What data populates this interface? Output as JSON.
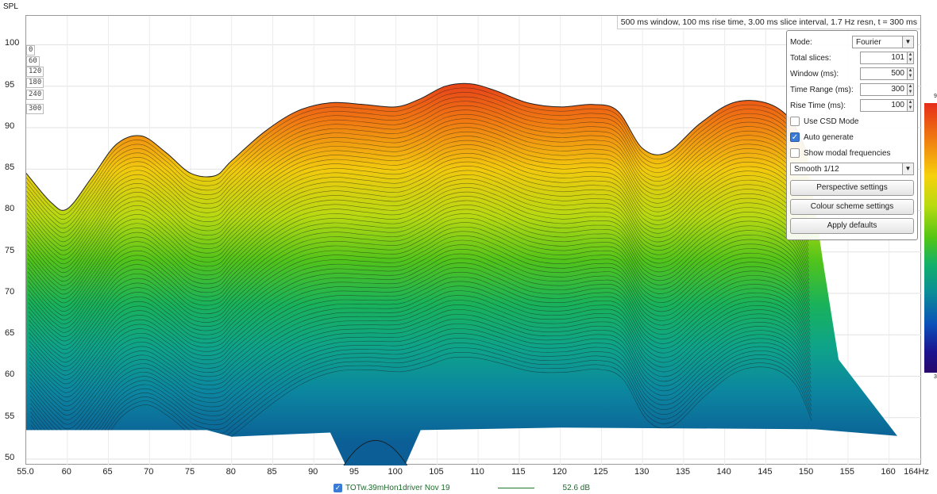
{
  "chart_data": {
    "type": "area",
    "title": "",
    "ylabel": "SPL",
    "xunit": "Hz",
    "xlim": [
      55,
      164
    ],
    "ylim": [
      48,
      101
    ],
    "yticks": [
      "100",
      "95",
      "90",
      "85",
      "80",
      "75",
      "70",
      "65",
      "60",
      "55",
      "50"
    ],
    "xticks": [
      "55.0",
      "60",
      "65",
      "70",
      "75",
      "80",
      "85",
      "90",
      "95",
      "100",
      "105",
      "110",
      "115",
      "120",
      "125",
      "130",
      "135",
      "140",
      "145",
      "150",
      "155",
      "160",
      "164Hz"
    ],
    "time_labels": [
      "0",
      "60",
      "120",
      "180",
      "240",
      "300"
    ],
    "info": "500 ms window, 100 ms rise time, 3.00 ms slice interval, 1.7 Hz resn, t = 300 ms",
    "front_slice": {
      "freq": [
        55,
        58,
        60,
        63,
        66,
        69,
        72,
        75,
        78,
        80,
        84,
        88,
        92,
        96,
        100,
        103,
        106,
        109,
        112,
        116,
        120,
        124,
        127,
        130,
        133,
        137,
        141,
        145,
        148,
        150
      ],
      "spl": [
        84.5,
        81,
        80.2,
        84,
        88,
        89,
        87,
        84.5,
        84.2,
        86,
        89.5,
        92,
        93,
        92.8,
        92.5,
        93.5,
        95,
        95.3,
        94.5,
        93,
        92.5,
        92.8,
        92,
        87.5,
        87,
        90.5,
        93,
        93,
        91,
        87
      ]
    },
    "colour_scale": {
      "top": "9",
      "bottom": "3"
    }
  },
  "panel": {
    "mode_label": "Mode:",
    "mode_value": "Fourier",
    "total_slices_label": "Total slices:",
    "total_slices_value": "101",
    "window_label": "Window (ms):",
    "window_value": "500",
    "time_range_label": "Time Range (ms):",
    "time_range_value": "300",
    "rise_time_label": "Rise Time (ms):",
    "rise_time_value": "100",
    "use_csd_label": "Use CSD Mode",
    "use_csd_checked": false,
    "auto_generate_label": "Auto generate",
    "auto_generate_checked": true,
    "show_modal_label": "Show modal frequencies",
    "show_modal_checked": false,
    "smoothing_value": "Smooth 1/12",
    "perspective_button": "Perspective settings",
    "colour_button": "Colour scheme settings",
    "defaults_button": "Apply defaults"
  },
  "legend": {
    "name": "TOTw.39mHon1driver Nov 19",
    "value": "52.6 dB",
    "line_color": "#1c7a2e"
  }
}
